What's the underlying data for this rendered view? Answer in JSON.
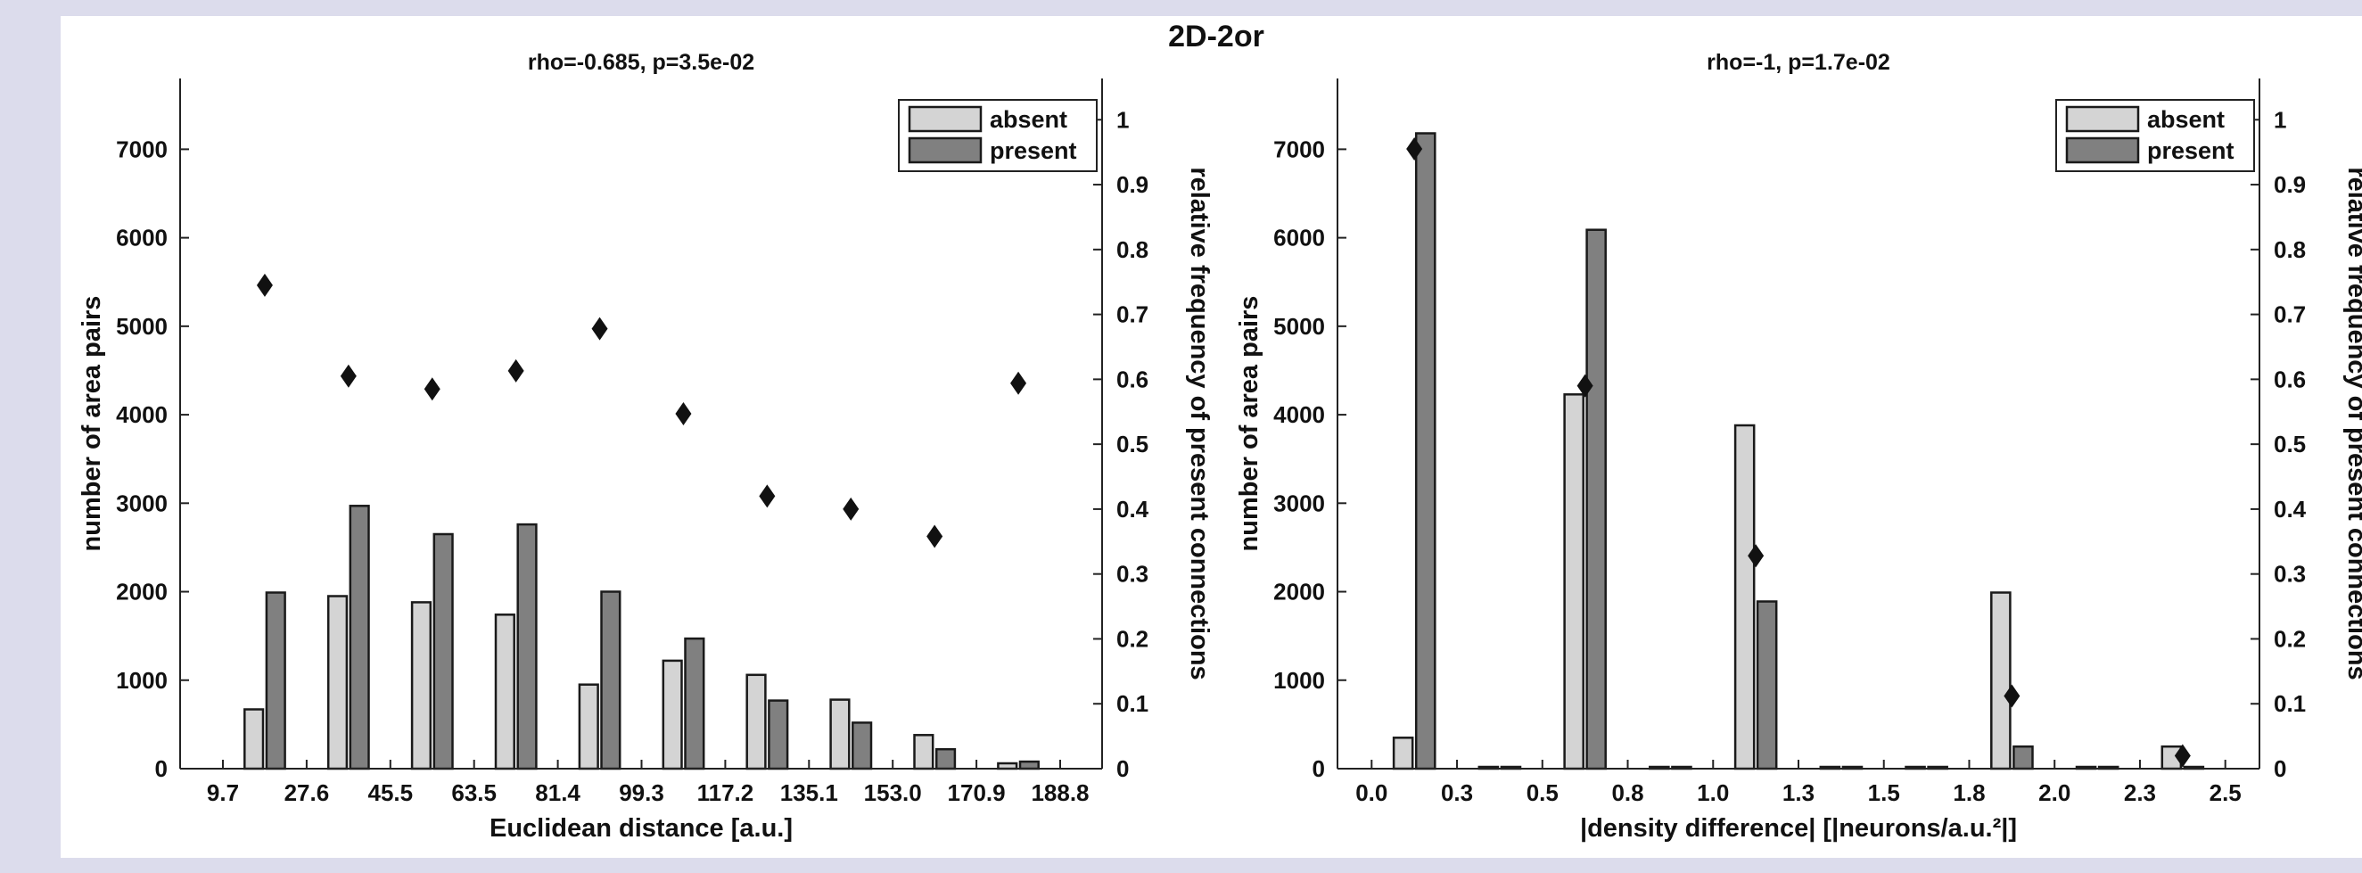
{
  "figure": {
    "title": "2D-2or",
    "background": "#dcdcec",
    "panel_color": "#ffffff"
  },
  "chart_data": [
    {
      "type": "bar",
      "title": "rho=-0.685, p=3.5e-02",
      "xlabel": "Euclidean distance [a.u.]",
      "ylabel": "number of area pairs",
      "y2label": "relative frequency of present connections",
      "x_ticks": [
        "9.7",
        "27.6",
        "45.5",
        "63.5",
        "81.4",
        "99.3",
        "117.2",
        "135.1",
        "153.0",
        "170.9",
        "188.8"
      ],
      "xlim": [
        0,
        11
      ],
      "ylim": [
        0,
        7800
      ],
      "y_ticks": [
        0,
        1000,
        2000,
        3000,
        4000,
        5000,
        6000,
        7000
      ],
      "y2lim": [
        0,
        1.0636
      ],
      "y2_ticks": [
        0,
        0.1,
        0.2,
        0.3,
        0.4,
        0.5,
        0.6,
        0.7,
        0.8,
        0.9,
        1
      ],
      "grid": false,
      "legend_position": "top-right",
      "series": [
        {
          "name": "absent",
          "color": "#d4d4d4",
          "values": [
            670,
            1950,
            1880,
            1740,
            950,
            1220,
            1060,
            780,
            380,
            60
          ]
        },
        {
          "name": "present",
          "color": "#808080",
          "values": [
            1990,
            2970,
            2650,
            2760,
            2000,
            1470,
            770,
            520,
            220,
            80
          ]
        }
      ],
      "markers": {
        "name": "relative frequency",
        "shape": "diamond",
        "color": "#111111",
        "values": [
          0.745,
          0.605,
          0.585,
          0.613,
          0.678,
          0.547,
          0.42,
          0.4,
          0.358,
          0.594
        ]
      }
    },
    {
      "type": "bar",
      "title": "rho=-1, p=1.7e-02",
      "xlabel": "|density difference| [|neurons/a.u.²|]",
      "ylabel": "number of area pairs",
      "y2label": "relative frequency of present connections",
      "x_ticks": [
        "0.0",
        "0.3",
        "0.5",
        "0.8",
        "1.0",
        "1.3",
        "1.5",
        "1.8",
        "2.0",
        "2.3",
        "2.5"
      ],
      "xlim": [
        -0.1,
        2.6
      ],
      "ylim": [
        0,
        7800
      ],
      "y_ticks": [
        0,
        1000,
        2000,
        3000,
        4000,
        5000,
        6000,
        7000
      ],
      "y2lim": [
        0,
        1.0636
      ],
      "y2_ticks": [
        0,
        0.1,
        0.2,
        0.3,
        0.4,
        0.5,
        0.6,
        0.7,
        0.8,
        0.9,
        1
      ],
      "grid": false,
      "legend_position": "top-right",
      "series": [
        {
          "name": "absent",
          "color": "#d4d4d4",
          "values": [
            350,
            0,
            4230,
            0,
            3880,
            0,
            0,
            1990,
            0,
            250
          ]
        },
        {
          "name": "present",
          "color": "#808080",
          "values": [
            7180,
            0,
            6090,
            0,
            1890,
            0,
            0,
            250,
            0,
            0
          ]
        }
      ],
      "markers": {
        "name": "relative frequency",
        "shape": "diamond",
        "color": "#111111",
        "values": [
          0.955,
          null,
          0.59,
          null,
          0.328,
          null,
          null,
          0.112,
          null,
          0.02
        ]
      }
    }
  ]
}
